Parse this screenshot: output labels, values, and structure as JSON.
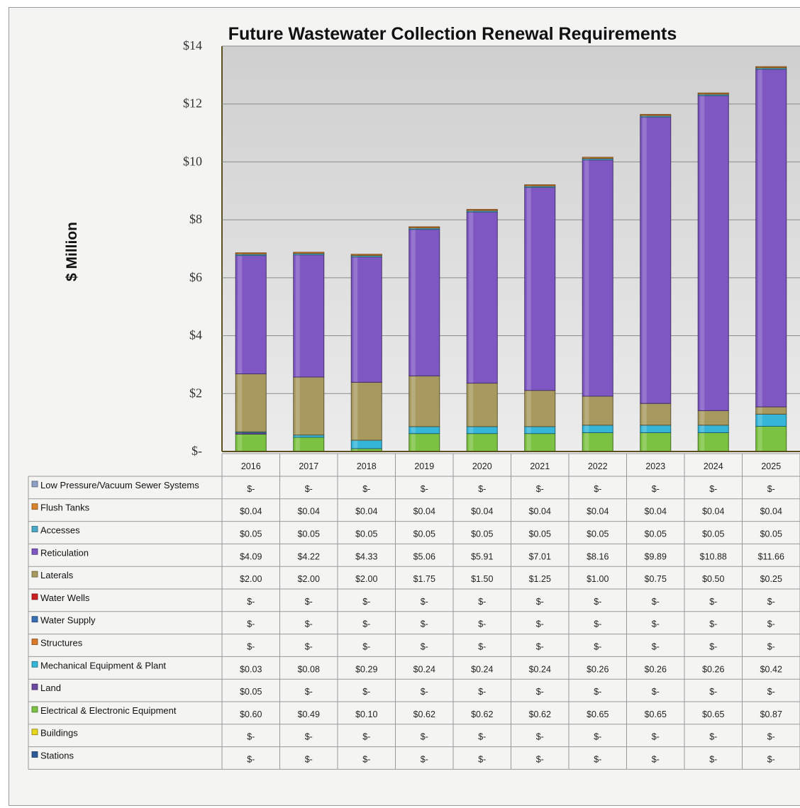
{
  "chart_data": {
    "type": "bar",
    "stacked": true,
    "title": "Future Wastewater Collection Renewal Requirements",
    "ylabel": "$ Million",
    "xlabel": "",
    "ylim": [
      0,
      14
    ],
    "yticks": [
      0,
      2,
      4,
      6,
      8,
      10,
      12,
      14
    ],
    "ytick_labels": [
      "$-",
      "$2",
      "$4",
      "$6",
      "$8",
      "$10",
      "$12",
      "$14"
    ],
    "grid": true,
    "legend": "data-table",
    "categories": [
      "2016",
      "2017",
      "2018",
      "2019",
      "2020",
      "2021",
      "2022",
      "2023",
      "2024",
      "2025"
    ],
    "stack_order_bottom_to_top": [
      "Stations",
      "Buildings",
      "Electrical & Electronic  Equipment",
      "Land",
      "Mechanical Equipment  & Plant",
      "Structures",
      "Water Supply",
      "Water Wells",
      "Laterals",
      " Reticulation",
      "Accesses",
      "Flush Tanks",
      "Low Pressure/Vacuum Sewer Systems"
    ],
    "series": [
      {
        "name": "Low Pressure/Vacuum Sewer Systems",
        "color": "#8ea0c4",
        "values": [
          0,
          0,
          0,
          0,
          0,
          0,
          0,
          0,
          0,
          0
        ],
        "labels": [
          "$-",
          "$-",
          "$-",
          "$-",
          "$-",
          "$-",
          "$-",
          "$-",
          "$-",
          "$-"
        ]
      },
      {
        "name": "Flush Tanks",
        "color": "#d9842b",
        "values": [
          0.04,
          0.04,
          0.04,
          0.04,
          0.04,
          0.04,
          0.04,
          0.04,
          0.04,
          0.04
        ],
        "labels": [
          "$0.04",
          "$0.04",
          "$0.04",
          "$0.04",
          "$0.04",
          "$0.04",
          "$0.04",
          "$0.04",
          "$0.04",
          "$0.04"
        ]
      },
      {
        "name": "Accesses",
        "color": "#4aa8c8",
        "values": [
          0.05,
          0.05,
          0.05,
          0.05,
          0.05,
          0.05,
          0.05,
          0.05,
          0.05,
          0.05
        ],
        "labels": [
          "$0.05",
          "$0.05",
          "$0.05",
          "$0.05",
          "$0.05",
          "$0.05",
          "$0.05",
          "$0.05",
          "$0.05",
          "$0.05"
        ]
      },
      {
        "name": " Reticulation",
        "color": "#7e57c2",
        "values": [
          4.09,
          4.22,
          4.33,
          5.06,
          5.91,
          7.01,
          8.16,
          9.89,
          10.88,
          11.66
        ],
        "labels": [
          "$4.09",
          "$4.22",
          "$4.33",
          "$5.06",
          "$5.91",
          "$7.01",
          "$8.16",
          "$9.89",
          "$10.88",
          "$11.66"
        ]
      },
      {
        "name": "Laterals",
        "color": "#a89a5e",
        "values": [
          2.0,
          2.0,
          2.0,
          1.75,
          1.5,
          1.25,
          1.0,
          0.75,
          0.5,
          0.25
        ],
        "labels": [
          "$2.00",
          "$2.00",
          "$2.00",
          "$1.75",
          "$1.50",
          "$1.25",
          "$1.00",
          "$0.75",
          "$0.50",
          "$0.25"
        ]
      },
      {
        "name": "Water Wells",
        "color": "#cc1f1f",
        "values": [
          0,
          0,
          0,
          0,
          0,
          0,
          0,
          0,
          0,
          0
        ],
        "labels": [
          "$-",
          "$-",
          "$-",
          "$-",
          "$-",
          "$-",
          "$-",
          "$-",
          "$-",
          "$-"
        ]
      },
      {
        "name": "Water Supply",
        "color": "#3b6fb3",
        "values": [
          0,
          0,
          0,
          0,
          0,
          0,
          0,
          0,
          0,
          0
        ],
        "labels": [
          "$-",
          "$-",
          "$-",
          "$-",
          "$-",
          "$-",
          "$-",
          "$-",
          "$-",
          "$-"
        ]
      },
      {
        "name": "Structures",
        "color": "#d97b2b",
        "values": [
          0,
          0,
          0,
          0,
          0,
          0,
          0,
          0,
          0,
          0
        ],
        "labels": [
          "$-",
          "$-",
          "$-",
          "$-",
          "$-",
          "$-",
          "$-",
          "$-",
          "$-",
          "$-"
        ]
      },
      {
        "name": "Mechanical Equipment  & Plant",
        "color": "#35b5d8",
        "values": [
          0.03,
          0.08,
          0.29,
          0.24,
          0.24,
          0.24,
          0.26,
          0.26,
          0.26,
          0.42
        ],
        "labels": [
          "$0.03",
          "$0.08",
          "$0.29",
          "$0.24",
          "$0.24",
          "$0.24",
          "$0.26",
          "$0.26",
          "$0.26",
          "$0.42"
        ]
      },
      {
        "name": "Land",
        "color": "#6a4a9e",
        "values": [
          0.05,
          0,
          0,
          0,
          0,
          0,
          0,
          0,
          0,
          0
        ],
        "labels": [
          "$0.05",
          "$-",
          "$-",
          "$-",
          "$-",
          "$-",
          "$-",
          "$-",
          "$-",
          "$-"
        ]
      },
      {
        "name": "Electrical & Electronic  Equipment",
        "color": "#7cc242",
        "values": [
          0.6,
          0.49,
          0.1,
          0.62,
          0.62,
          0.62,
          0.65,
          0.65,
          0.65,
          0.87
        ],
        "labels": [
          "$0.60",
          "$0.49",
          "$0.10",
          "$0.62",
          "$0.62",
          "$0.62",
          "$0.65",
          "$0.65",
          "$0.65",
          "$0.87"
        ]
      },
      {
        "name": "Buildings",
        "color": "#e6d71e",
        "values": [
          0,
          0,
          0,
          0,
          0,
          0,
          0,
          0,
          0,
          0
        ],
        "labels": [
          "$-",
          "$-",
          "$-",
          "$-",
          "$-",
          "$-",
          "$-",
          "$-",
          "$-",
          "$-"
        ]
      },
      {
        "name": "Stations",
        "color": "#2f5a9a",
        "values": [
          0,
          0,
          0,
          0,
          0,
          0,
          0,
          0,
          0,
          0
        ],
        "labels": [
          "$-",
          "$-",
          "$-",
          "$-",
          "$-",
          "$-",
          "$-",
          "$-",
          "$-",
          "$-"
        ]
      }
    ]
  }
}
